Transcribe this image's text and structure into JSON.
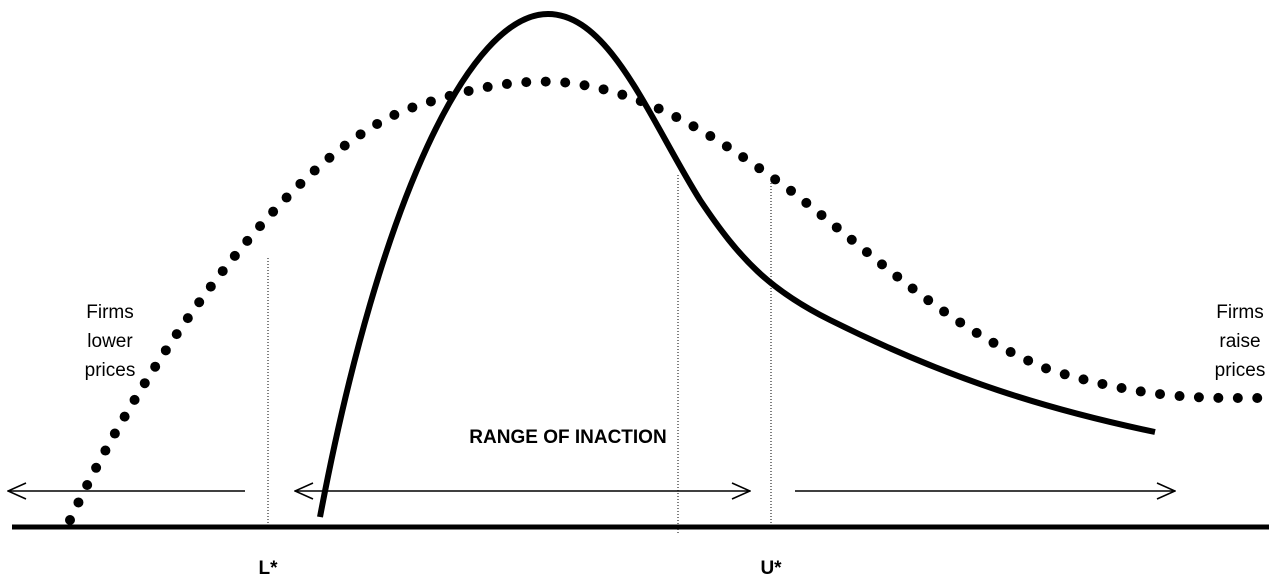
{
  "labels": {
    "left": [
      "Firms",
      "lower",
      "prices"
    ],
    "right": [
      "Firms",
      "raise",
      "prices"
    ],
    "range": "RANGE OF INACTION",
    "lower_threshold": "L*",
    "upper_threshold": "U*"
  }
}
